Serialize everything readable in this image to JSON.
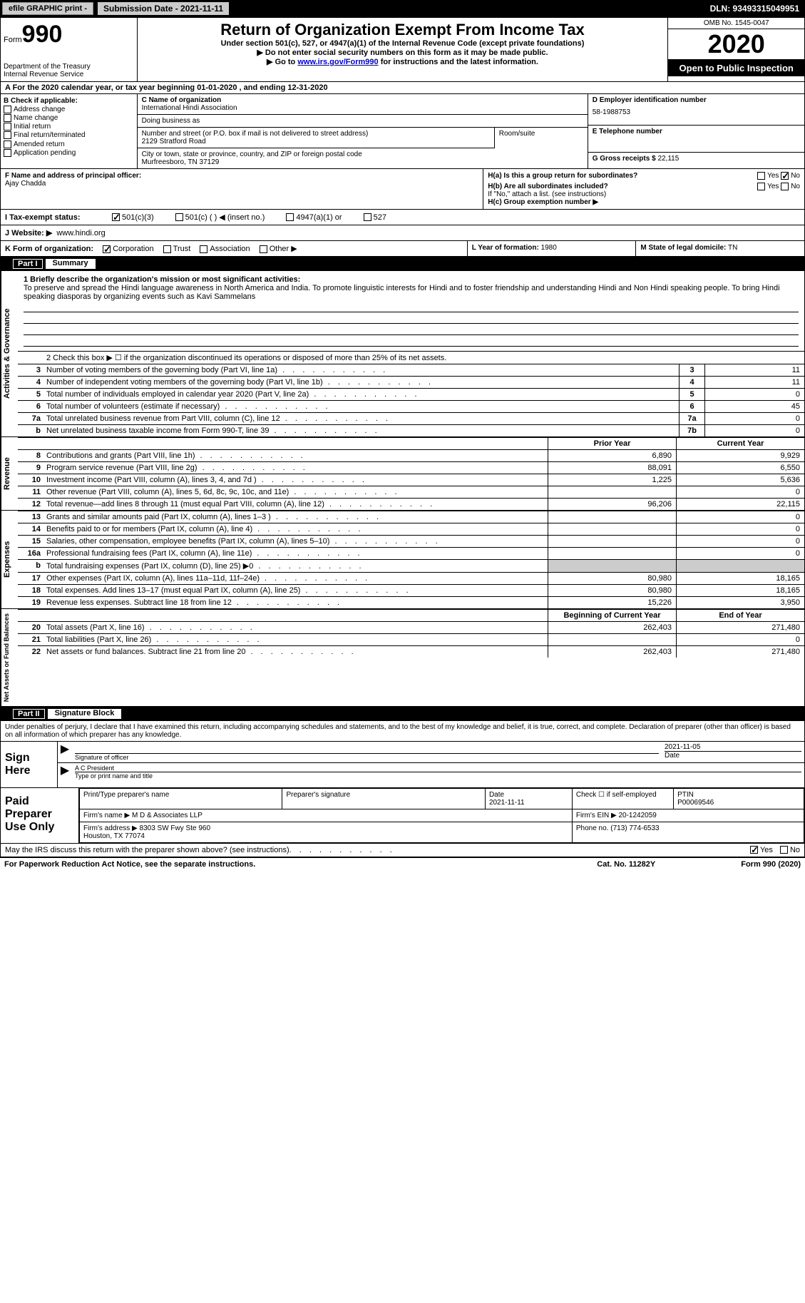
{
  "topbar": {
    "efile_label": "efile GRAPHIC print -",
    "submission_label": "Submission Date - 2021-11-11",
    "dln": "DLN: 93493315049951"
  },
  "header": {
    "form_word": "Form",
    "form_number": "990",
    "dept": "Department of the Treasury\nInternal Revenue Service",
    "title": "Return of Organization Exempt From Income Tax",
    "subtitle": "Under section 501(c), 527, or 4947(a)(1) of the Internal Revenue Code (except private foundations)",
    "note1": "▶ Do not enter social security numbers on this form as it may be made public.",
    "note2_pre": "▶ Go to ",
    "note2_link": "www.irs.gov/Form990",
    "note2_post": " for instructions and the latest information.",
    "omb": "OMB No. 1545-0047",
    "year": "2020",
    "open": "Open to Public Inspection"
  },
  "rowA": "A For the 2020 calendar year, or tax year beginning 01-01-2020    , and ending 12-31-2020",
  "colB": {
    "title": "B Check if applicable:",
    "items": [
      "Address change",
      "Name change",
      "Initial return",
      "Final return/terminated",
      "Amended return",
      "Application pending"
    ]
  },
  "colC": {
    "name_lbl": "C Name of organization",
    "name": "International Hindi Association",
    "dba_lbl": "Doing business as",
    "addr_lbl": "Number and street (or P.O. box if mail is not delivered to street address)",
    "addr": "2129 Stratford Road",
    "room_lbl": "Room/suite",
    "city_lbl": "City or town, state or province, country, and ZIP or foreign postal code",
    "city": "Murfreesboro, TN  37129",
    "officer_lbl": "F Name and address of principal officer:",
    "officer": "Ajay Chadda"
  },
  "colD": {
    "ein_lbl": "D Employer identification number",
    "ein": "58-1988753",
    "tel_lbl": "E Telephone number",
    "gross_lbl": "G Gross receipts $",
    "gross": "22,115"
  },
  "colH": {
    "ha": "H(a)  Is this a group return for subordinates?",
    "hb": "H(b)  Are all subordinates included?",
    "hb_note": "If \"No,\" attach a list. (see instructions)",
    "hc": "H(c)  Group exemption number ▶",
    "yes": "Yes",
    "no": "No"
  },
  "taxrow": {
    "label": "I  Tax-exempt status:",
    "opts": [
      "501(c)(3)",
      "501(c) (  ) ◀ (insert no.)",
      "4947(a)(1) or",
      "527"
    ]
  },
  "website": {
    "label": "J  Website: ▶",
    "value": "www.hindi.org"
  },
  "kform": {
    "label": "K Form of organization:",
    "opts": [
      "Corporation",
      "Trust",
      "Association",
      "Other ▶"
    ]
  },
  "lrow": {
    "l_lbl": "L Year of formation:",
    "l_val": "1980",
    "m_lbl": "M State of legal domicile:",
    "m_val": "TN"
  },
  "part1": {
    "header_label": "Part I",
    "header_title": "Summary",
    "mission_lbl": "1   Briefly describe the organization's mission or most significant activities:",
    "mission": "To preserve and spread the Hindi language awareness in North America and India. To promote linguistic interests for Hindi and to foster friendship and understanding Hindi and Non Hindi speaking people. To bring Hindi speaking diasporas by organizing events such as Kavi Sammelans",
    "line2": "2   Check this box ▶ ☐  if the organization discontinued its operations or disposed of more than 25% of its net assets.",
    "governance_label": "Activities & Governance",
    "revenue_label": "Revenue",
    "expenses_label": "Expenses",
    "netassets_label": "Net Assets or Fund Balances",
    "lines_gov": [
      {
        "n": "3",
        "d": "Number of voting members of the governing body (Part VI, line 1a)",
        "box": "3",
        "val": "11"
      },
      {
        "n": "4",
        "d": "Number of independent voting members of the governing body (Part VI, line 1b)",
        "box": "4",
        "val": "11"
      },
      {
        "n": "5",
        "d": "Total number of individuals employed in calendar year 2020 (Part V, line 2a)",
        "box": "5",
        "val": "0"
      },
      {
        "n": "6",
        "d": "Total number of volunteers (estimate if necessary)",
        "box": "6",
        "val": "45"
      },
      {
        "n": "7a",
        "d": "Total unrelated business revenue from Part VIII, column (C), line 12",
        "box": "7a",
        "val": "0"
      },
      {
        "n": "b",
        "d": "Net unrelated business taxable income from Form 990-T, line 39",
        "box": "7b",
        "val": "0"
      }
    ],
    "py_header": "Prior Year",
    "cy_header": "Current Year",
    "lines_rev": [
      {
        "n": "8",
        "d": "Contributions and grants (Part VIII, line 1h)",
        "py": "6,890",
        "cy": "9,929"
      },
      {
        "n": "9",
        "d": "Program service revenue (Part VIII, line 2g)",
        "py": "88,091",
        "cy": "6,550"
      },
      {
        "n": "10",
        "d": "Investment income (Part VIII, column (A), lines 3, 4, and 7d )",
        "py": "1,225",
        "cy": "5,636"
      },
      {
        "n": "11",
        "d": "Other revenue (Part VIII, column (A), lines 5, 6d, 8c, 9c, 10c, and 11e)",
        "py": "",
        "cy": "0"
      },
      {
        "n": "12",
        "d": "Total revenue—add lines 8 through 11 (must equal Part VIII, column (A), line 12)",
        "py": "96,206",
        "cy": "22,115"
      }
    ],
    "lines_exp": [
      {
        "n": "13",
        "d": "Grants and similar amounts paid (Part IX, column (A), lines 1–3 )",
        "py": "",
        "cy": "0"
      },
      {
        "n": "14",
        "d": "Benefits paid to or for members (Part IX, column (A), line 4)",
        "py": "",
        "cy": "0"
      },
      {
        "n": "15",
        "d": "Salaries, other compensation, employee benefits (Part IX, column (A), lines 5–10)",
        "py": "",
        "cy": "0"
      },
      {
        "n": "16a",
        "d": "Professional fundraising fees (Part IX, column (A), line 11e)",
        "py": "",
        "cy": "0"
      },
      {
        "n": "b",
        "d": "Total fundraising expenses (Part IX, column (D), line 25) ▶0",
        "py": "SHADE",
        "cy": "SHADE"
      },
      {
        "n": "17",
        "d": "Other expenses (Part IX, column (A), lines 11a–11d, 11f–24e)",
        "py": "80,980",
        "cy": "18,165"
      },
      {
        "n": "18",
        "d": "Total expenses. Add lines 13–17 (must equal Part IX, column (A), line 25)",
        "py": "80,980",
        "cy": "18,165"
      },
      {
        "n": "19",
        "d": "Revenue less expenses. Subtract line 18 from line 12",
        "py": "15,226",
        "cy": "3,950"
      }
    ],
    "by_header": "Beginning of Current Year",
    "ey_header": "End of Year",
    "lines_net": [
      {
        "n": "20",
        "d": "Total assets (Part X, line 16)",
        "py": "262,403",
        "cy": "271,480"
      },
      {
        "n": "21",
        "d": "Total liabilities (Part X, line 26)",
        "py": "",
        "cy": "0"
      },
      {
        "n": "22",
        "d": "Net assets or fund balances. Subtract line 21 from line 20",
        "py": "262,403",
        "cy": "271,480"
      }
    ]
  },
  "part2": {
    "header_label": "Part II",
    "header_title": "Signature Block",
    "declaration": "Under penalties of perjury, I declare that I have examined this return, including accompanying schedules and statements, and to the best of my knowledge and belief, it is true, correct, and complete. Declaration of preparer (other than officer) is based on all information of which preparer has any knowledge.",
    "sign_here": "Sign Here",
    "sig_officer_lbl": "Signature of officer",
    "sig_date": "2021-11-05",
    "date_lbl": "Date",
    "officer_name": "A C  President",
    "officer_name_lbl": "Type or print name and title"
  },
  "preparer": {
    "label": "Paid Preparer Use Only",
    "name_lbl": "Print/Type preparer's name",
    "sig_lbl": "Preparer's signature",
    "date_lbl": "Date",
    "date": "2021-11-11",
    "check_lbl": "Check ☐ if self-employed",
    "ptin_lbl": "PTIN",
    "ptin": "P00069546",
    "firm_name_lbl": "Firm's name    ▶",
    "firm_name": "M D & Associates LLP",
    "firm_ein_lbl": "Firm's EIN ▶",
    "firm_ein": "20-1242059",
    "firm_addr_lbl": "Firm's address ▶",
    "firm_addr": "8303 SW Fwy Ste 960\nHouston, TX  77074",
    "phone_lbl": "Phone no.",
    "phone": "(713) 774-6533"
  },
  "discuss": {
    "text": "May the IRS discuss this return with the preparer shown above? (see instructions)",
    "yes": "Yes",
    "no": "No"
  },
  "footer": {
    "left": "For Paperwork Reduction Act Notice, see the separate instructions.",
    "center": "Cat. No. 11282Y",
    "right": "Form 990 (2020)"
  }
}
